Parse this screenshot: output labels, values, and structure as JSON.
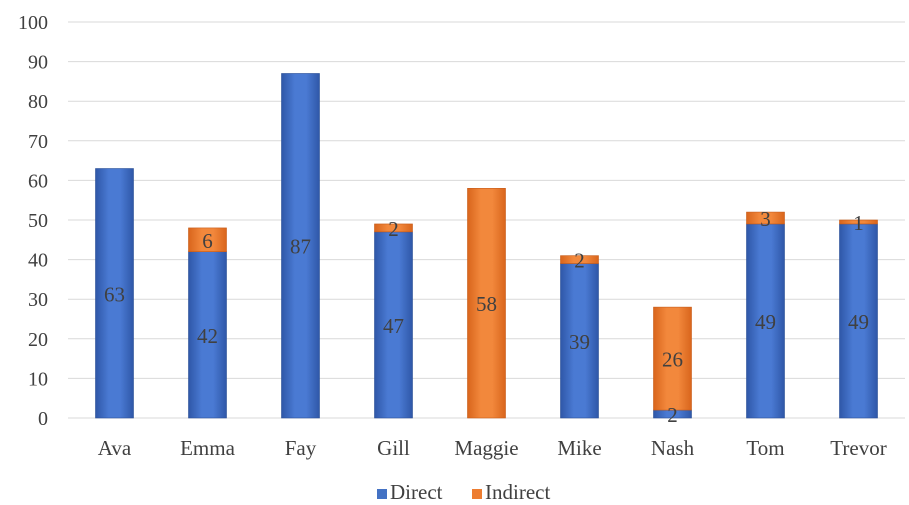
{
  "chart_data": {
    "type": "bar",
    "stacked": true,
    "title": "",
    "xlabel": "",
    "ylabel": "",
    "ylim": [
      0,
      100
    ],
    "yticks": [
      0,
      10,
      20,
      30,
      40,
      50,
      60,
      70,
      80,
      90,
      100
    ],
    "categories": [
      "Ava",
      "Emma",
      "Fay",
      "Gill",
      "Maggie",
      "Mike",
      "Nash",
      "Tom",
      "Trevor"
    ],
    "series": [
      {
        "name": "Direct",
        "color": "#4472c4",
        "values": [
          63,
          42,
          87,
          47,
          0,
          39,
          2,
          49,
          49
        ]
      },
      {
        "name": "Indirect",
        "color": "#ed7d31",
        "values": [
          0,
          6,
          0,
          2,
          58,
          2,
          26,
          3,
          1
        ]
      }
    ],
    "data_labels": [
      [
        "63",
        "42",
        "87",
        "47",
        "",
        "39",
        "2",
        "49",
        "49"
      ],
      [
        "",
        "6",
        "",
        "2",
        "58",
        "2",
        "26",
        "3",
        "1"
      ]
    ],
    "grid": true,
    "legend_position": "bottom"
  }
}
